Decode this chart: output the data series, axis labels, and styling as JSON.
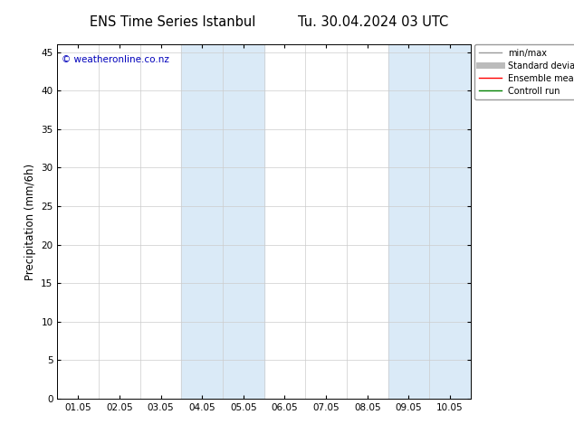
{
  "title_left": "ENS Time Series Istanbul",
  "title_right": "Tu. 30.04.2024 03 UTC",
  "ylabel": "Precipitation (mm/6h)",
  "ylim": [
    0,
    46
  ],
  "yticks": [
    0,
    5,
    10,
    15,
    20,
    25,
    30,
    35,
    40,
    45
  ],
  "xlim": [
    0,
    10
  ],
  "xtick_labels": [
    "01.05",
    "02.05",
    "03.05",
    "04.05",
    "05.05",
    "06.05",
    "07.05",
    "08.05",
    "09.05",
    "10.05"
  ],
  "xtick_positions": [
    0.5,
    1.5,
    2.5,
    3.5,
    4.5,
    5.5,
    6.5,
    7.5,
    8.5,
    9.5
  ],
  "xgrid_positions": [
    0,
    1,
    2,
    3,
    4,
    5,
    6,
    7,
    8,
    9,
    10
  ],
  "shaded_bands": [
    {
      "x_start": 3.0,
      "x_end": 5.0
    },
    {
      "x_start": 8.0,
      "x_end": 10.0
    }
  ],
  "shade_color": "#daeaf7",
  "copyright_text": "© weatheronline.co.nz",
  "copyright_color": "#0000bb",
  "legend_entries": [
    {
      "label": "min/max",
      "color": "#999999",
      "lw": 1.0,
      "linestyle": "-"
    },
    {
      "label": "Standard deviation",
      "color": "#bbbbbb",
      "lw": 5,
      "linestyle": "-"
    },
    {
      "label": "Ensemble mean run",
      "color": "#ff0000",
      "lw": 1.0,
      "linestyle": "-"
    },
    {
      "label": "Controll run",
      "color": "#008000",
      "lw": 1.0,
      "linestyle": "-"
    }
  ],
  "bg_color": "#ffffff",
  "grid_color": "#cccccc",
  "title_fontsize": 10.5,
  "axis_label_fontsize": 8.5,
  "tick_fontsize": 7.5,
  "copyright_fontsize": 7.5
}
